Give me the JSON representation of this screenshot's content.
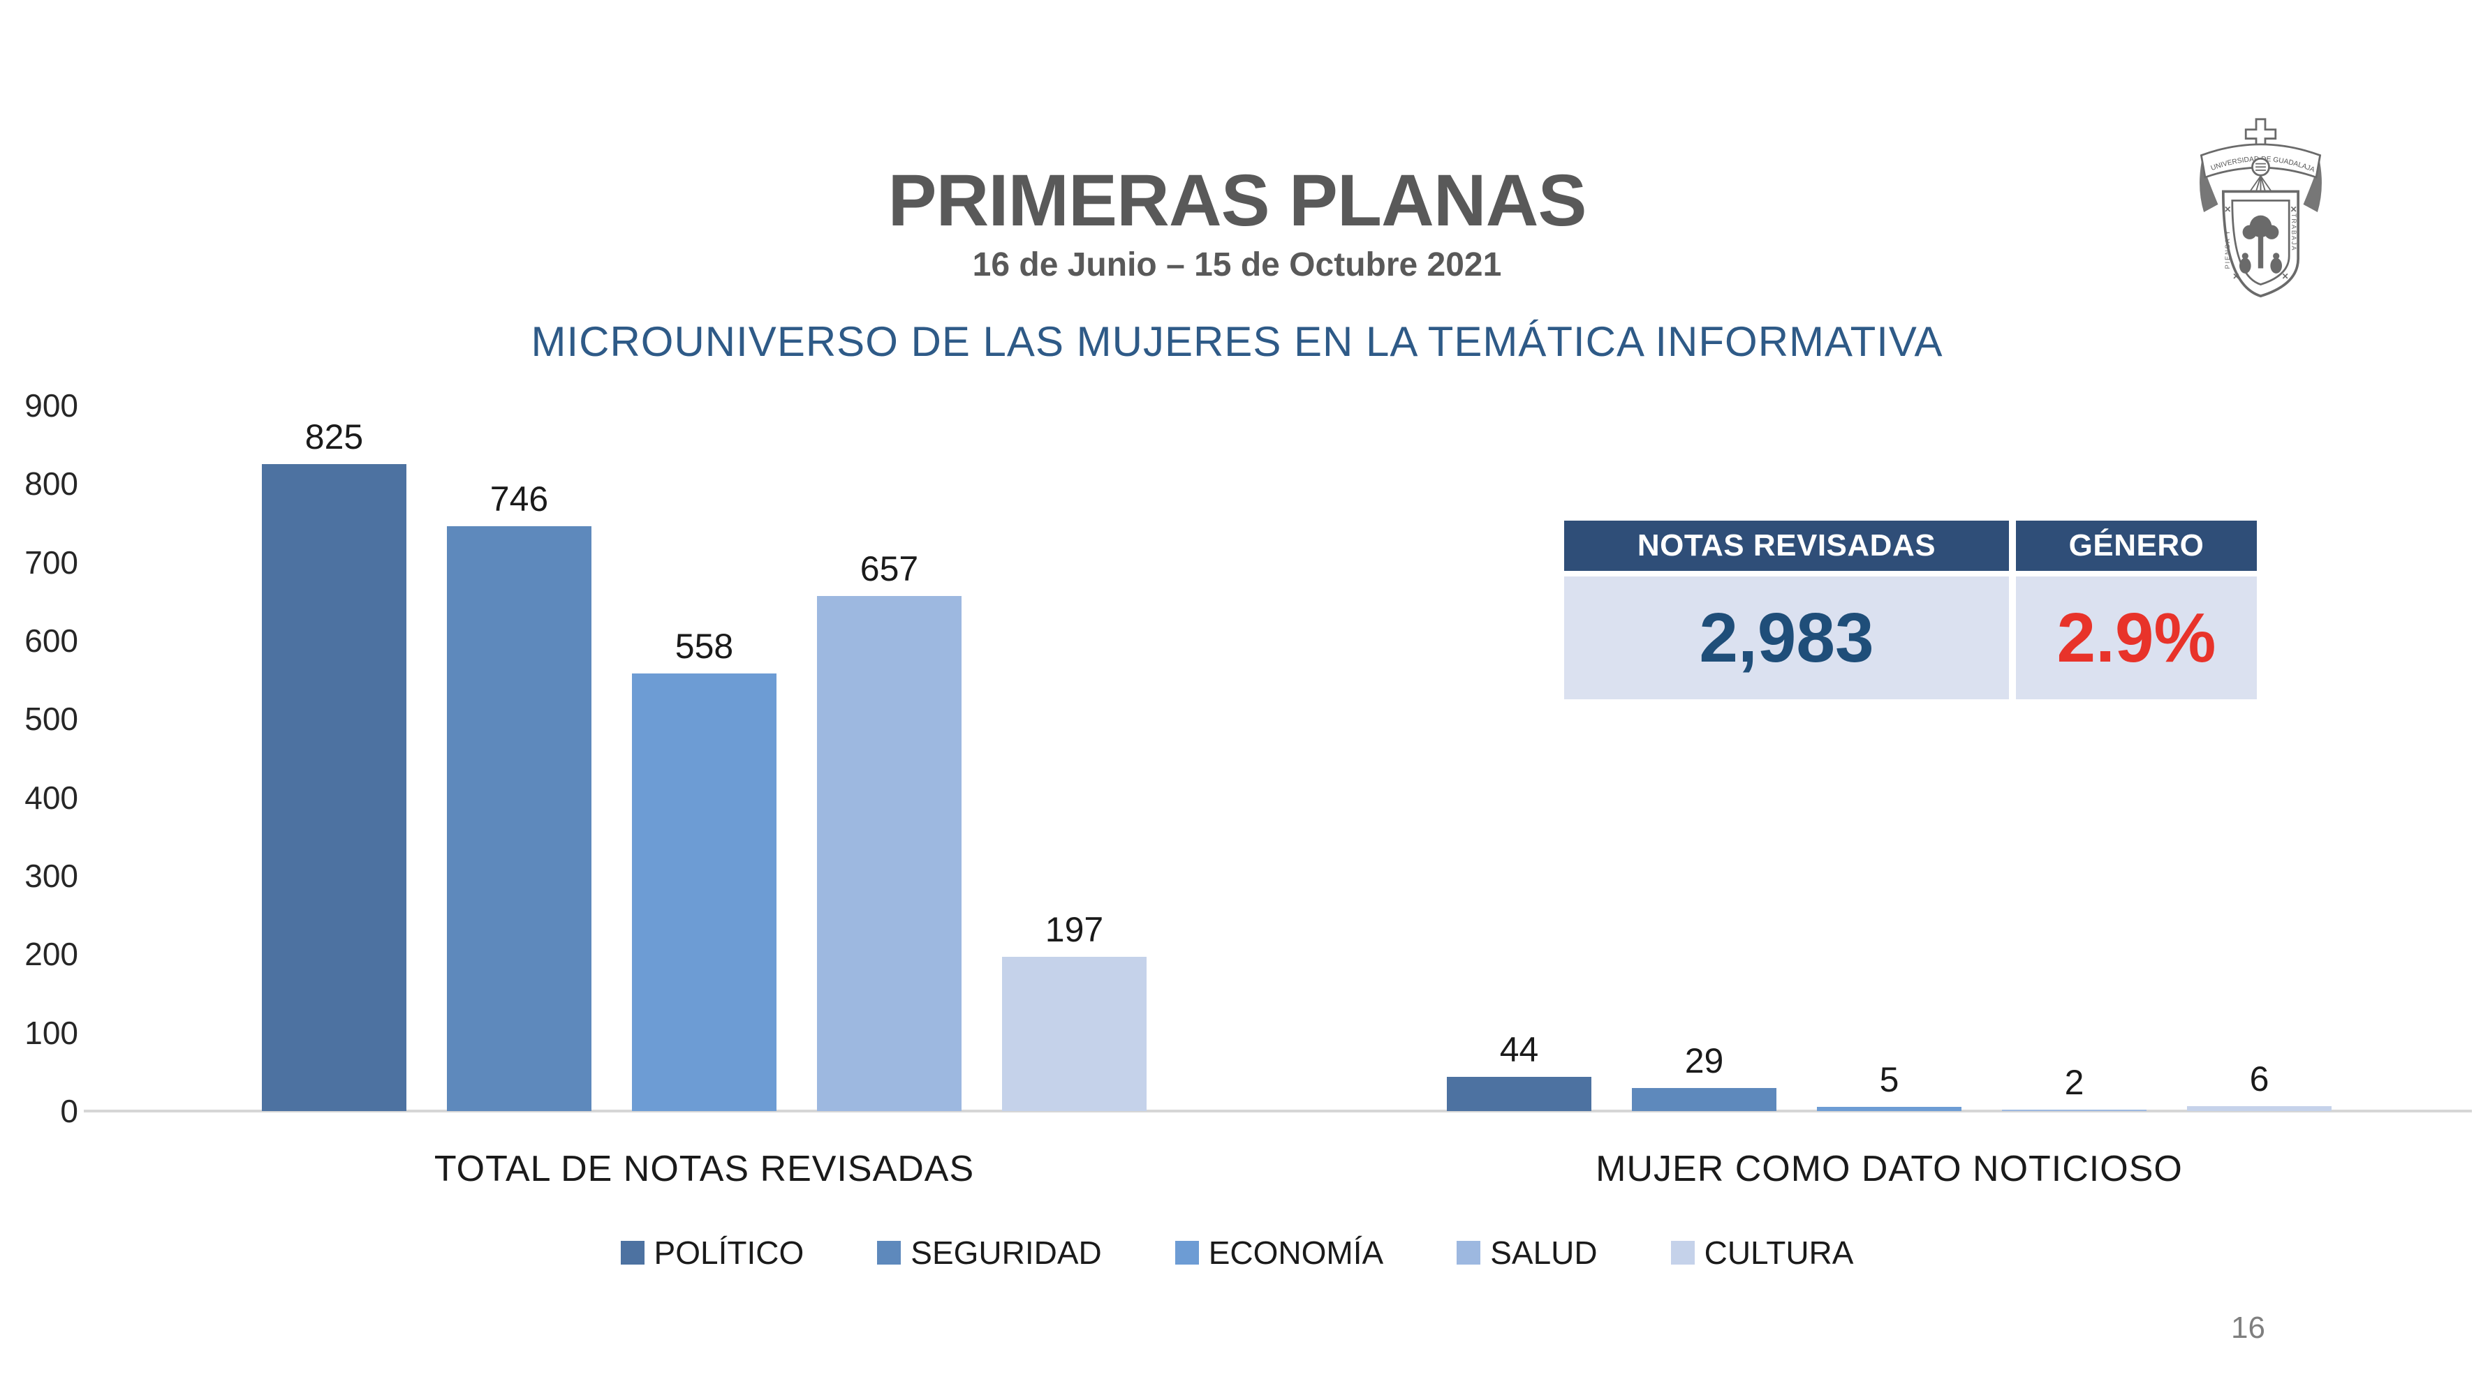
{
  "header": {
    "title": "PRIMERAS PLANAS",
    "subtitle": "16 de Junio – 15 de Octubre 2021",
    "section_title": "MICROUNIVERSO DE LAS MUJERES EN LA TEMÁTICA INFORMATIVA"
  },
  "logo": {
    "banner_text": "UNIVERSIDAD DE GUADALAJARA",
    "motto_left": "PIENSA Y",
    "motto_right": "TRABAJA"
  },
  "chart_data": {
    "type": "bar",
    "title": "MICROUNIVERSO DE LAS MUJERES EN LA TEMÁTICA INFORMATIVA",
    "categories": [
      "TOTAL DE NOTAS REVISADAS",
      "MUJER COMO DATO NOTICIOSO"
    ],
    "series": [
      {
        "name": "POLÍTICO",
        "color": "#4D72A1",
        "values": [
          825,
          44
        ]
      },
      {
        "name": "SEGURIDAD",
        "color": "#5E89BC",
        "values": [
          746,
          29
        ]
      },
      {
        "name": "ECONOMÍA",
        "color": "#6D9CD4",
        "values": [
          558,
          5
        ]
      },
      {
        "name": "SALUD",
        "color": "#9DB8E0",
        "values": [
          657,
          2
        ]
      },
      {
        "name": "CULTURA",
        "color": "#C5D2EA",
        "values": [
          197,
          6
        ]
      }
    ],
    "ylim": [
      0,
      900
    ],
    "yticks": [
      0,
      100,
      200,
      300,
      400,
      500,
      600,
      700,
      800,
      900
    ],
    "grid": false,
    "legend_position": "bottom"
  },
  "summary_table": {
    "columns": [
      {
        "header": "NOTAS REVISADAS",
        "value": "2,983",
        "value_color": "#1F4E79"
      },
      {
        "header": "GÉNERO",
        "value": "2.9%",
        "value_color": "#E8332A"
      }
    ],
    "header_bg": "#2F4E78",
    "body_bg": "#DBE1F0"
  },
  "footer": {
    "page_number": "16"
  },
  "colors": {
    "title_gray": "#595959",
    "heading_blue": "#2E5A87",
    "axis_line": "#D6D6D6",
    "value_text": "#1a1a1a",
    "page_number_gray": "#7F7F7F"
  }
}
